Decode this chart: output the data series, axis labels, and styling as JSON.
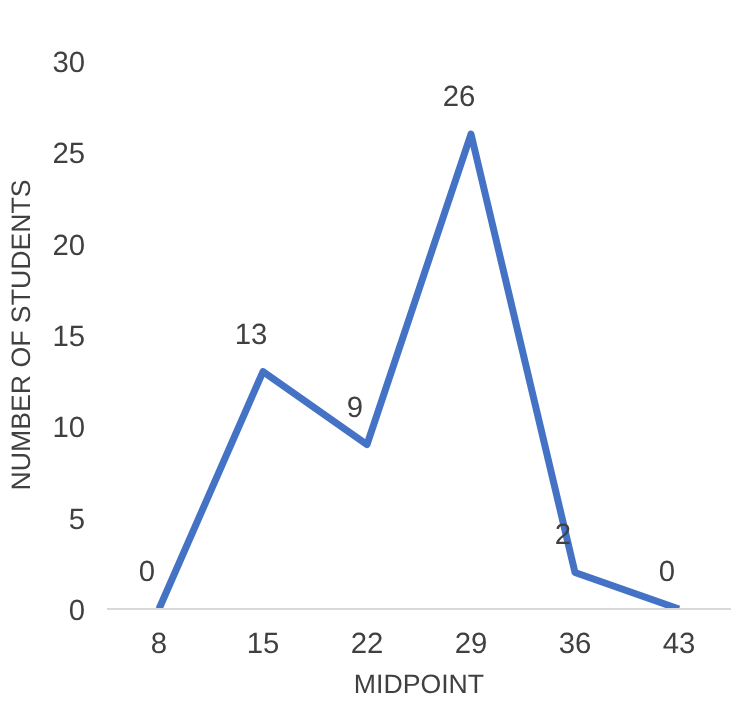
{
  "chart_data": {
    "type": "line",
    "categories": [
      "8",
      "15",
      "22",
      "29",
      "36",
      "43"
    ],
    "series": [
      {
        "color": "#4472c4",
        "values": [
          0,
          13,
          9,
          26,
          2,
          0
        ]
      }
    ],
    "ylim": [
      0,
      30
    ],
    "yticks": [
      0,
      5,
      10,
      15,
      20,
      25,
      30
    ],
    "xlabel": "MIDPOINT",
    "ylabel": "NUMBER OF STUDENTS",
    "data_labels": true,
    "marker": "none"
  }
}
